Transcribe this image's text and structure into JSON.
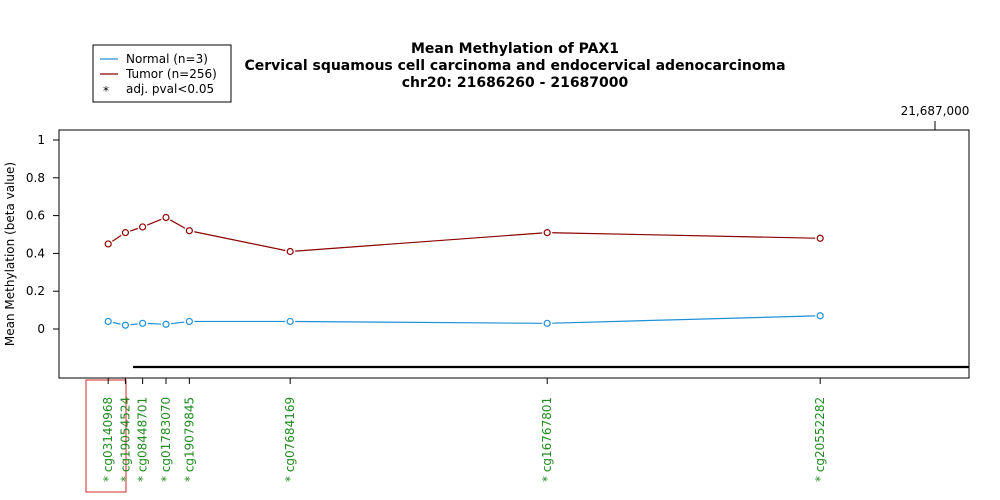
{
  "chart_data": {
    "type": "line",
    "title_lines": [
      "Mean Methylation of PAX1",
      "Cervical squamous cell carcinoma and endocervical adenocarcinoma",
      "chr20: 21686260 - 21687000"
    ],
    "xlabel": "",
    "ylabel": "Mean Methylation (beta value)",
    "ylim": [
      -0.2,
      1.05
    ],
    "y_ticks": [
      "0",
      "0.2",
      "0.4",
      "0.6",
      "0.8",
      "1"
    ],
    "x_range": [
      21686260,
      21687000
    ],
    "top_axis_label": "21,687,000",
    "grid": false,
    "legend_position": "top-left",
    "legend": [
      {
        "label": "Normal (n=3)",
        "color": "#1f8fd6",
        "symbol": "line"
      },
      {
        "label": "Tumor (n=256)",
        "color": "#8b0000",
        "symbol": "line"
      },
      {
        "label": "adj. pval<0.05",
        "color": "#000000",
        "symbol": "*"
      }
    ],
    "probes": [
      {
        "id": "cg03140968",
        "label": "* cg03140968",
        "pos": 21686300
      },
      {
        "id": "cg19054524",
        "label": "* cg19054524",
        "pos": 21686314
      },
      {
        "id": "cg08448701",
        "label": "* cg08448701",
        "pos": 21686328
      },
      {
        "id": "cg01783070",
        "label": "* cg01783070",
        "pos": 21686347
      },
      {
        "id": "cg19079845",
        "label": "* cg19079845",
        "pos": 21686366
      },
      {
        "id": "cg07684169",
        "label": "* cg07684169",
        "pos": 21686448
      },
      {
        "id": "cg16767801",
        "label": "* cg16767801",
        "pos": 21686657
      },
      {
        "id": "cg20552282",
        "label": "* cg20552282",
        "pos": 21686879
      }
    ],
    "series": [
      {
        "name": "Normal (n=3)",
        "color": "#1f8fd6",
        "values": [
          0.04,
          0.02,
          0.03,
          0.025,
          0.04,
          0.04,
          0.03,
          0.07
        ]
      },
      {
        "name": "Tumor (n=256)",
        "color": "#8b0000",
        "values": [
          0.45,
          0.51,
          0.54,
          0.59,
          0.52,
          0.41,
          0.51,
          0.48
        ]
      }
    ]
  }
}
